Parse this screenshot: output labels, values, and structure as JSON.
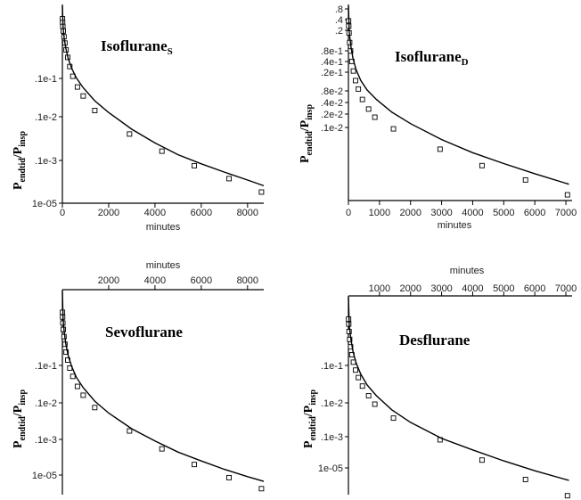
{
  "chart_data": [
    {
      "type": "scatter",
      "title": "Isoflurane",
      "title_subscript": "S",
      "ylabel": "P",
      "ylabel_subscript": "endtid",
      "ylabel_suffix": "/P",
      "ylabel_suffix_subscript": "insp",
      "xlabel": "minutes",
      "x_axis_position": "bottom",
      "xlim": [
        0,
        8700
      ],
      "x_ticks": [
        0,
        2000,
        4000,
        6000,
        8000
      ],
      "y_scale": "log",
      "y_tick_labels": [
        ".1e-1",
        ".1e-2",
        ".1e-3",
        "1e-05"
      ],
      "series": [
        {
          "style": "markers",
          "x": [
            5,
            10,
            20,
            40,
            70,
            110,
            160,
            230,
            320,
            450,
            650,
            900,
            1400,
            2900,
            4300,
            5700,
            7200,
            8600
          ],
          "y": [
            0.55,
            0.47,
            0.4,
            0.33,
            0.26,
            0.2,
            0.15,
            0.11,
            0.075,
            0.05,
            0.032,
            0.022,
            0.012,
            0.0045,
            0.0022,
            0.0012,
            0.0007,
            0.0004
          ]
        },
        {
          "style": "line",
          "x": [
            0,
            30,
            80,
            150,
            250,
            400,
            600,
            900,
            1400,
            2000,
            3000,
            4000,
            5000,
            6000,
            7000,
            8000,
            8700
          ],
          "y": [
            0.95,
            0.38,
            0.24,
            0.16,
            0.105,
            0.07,
            0.047,
            0.031,
            0.018,
            0.011,
            0.0055,
            0.0031,
            0.0019,
            0.0013,
            0.00092,
            0.00066,
            0.00052
          ]
        }
      ]
    },
    {
      "type": "scatter",
      "title": "Isoflurane",
      "title_subscript": "D",
      "ylabel": "P",
      "ylabel_subscript": "endtid",
      "ylabel_suffix": "/P",
      "ylabel_suffix_subscript": "insp",
      "xlabel": "minutes",
      "x_axis_position": "bottom",
      "xlim": [
        0,
        7200
      ],
      "x_ticks": [
        0,
        1000,
        2000,
        3000,
        4000,
        5000,
        6000,
        7000
      ],
      "y_scale": "log",
      "y_tick_labels": [
        ".8",
        ".4",
        ".2",
        ".8e-1",
        ".4e-1",
        ".2e-1",
        ".8e-2",
        ".4e-2",
        ".2e-2",
        ".1e-2"
      ],
      "series": [
        {
          "style": "markers",
          "x": [
            5,
            10,
            20,
            40,
            70,
            110,
            160,
            230,
            320,
            450,
            650,
            850,
            1450,
            2950,
            4300,
            5700,
            7050
          ],
          "y": [
            0.5,
            0.4,
            0.3,
            0.2,
            0.14,
            0.09,
            0.06,
            0.04,
            0.028,
            0.018,
            0.012,
            0.0085,
            0.0052,
            0.0022,
            0.0011,
            0.0006,
            0.00032
          ]
        },
        {
          "style": "line",
          "x": [
            0,
            30,
            80,
            150,
            250,
            400,
            600,
            900,
            1400,
            2000,
            3000,
            4000,
            5000,
            6000,
            7100
          ],
          "y": [
            0.95,
            0.3,
            0.17,
            0.1,
            0.063,
            0.04,
            0.027,
            0.018,
            0.0105,
            0.0065,
            0.0033,
            0.0019,
            0.0012,
            0.00078,
            0.0005
          ]
        }
      ]
    },
    {
      "type": "scatter",
      "title": "Sevoflurane",
      "ylabel": "P",
      "ylabel_subscript": "endtid",
      "ylabel_suffix": "/P",
      "ylabel_suffix_subscript": "insp",
      "xlabel": "minutes",
      "x_axis_position": "top",
      "xlim": [
        0,
        8700
      ],
      "x_ticks": [
        2000,
        4000,
        6000,
        8000
      ],
      "y_scale": "log",
      "y_tick_labels": [
        ".1e-1",
        ".1e-2",
        ".1e-3",
        "1e-05"
      ],
      "series": [
        {
          "style": "markers",
          "x": [
            5,
            10,
            20,
            40,
            70,
            110,
            160,
            230,
            320,
            450,
            650,
            900,
            1400,
            2900,
            4300,
            5700,
            7200,
            8600
          ],
          "y": [
            0.4,
            0.33,
            0.26,
            0.2,
            0.15,
            0.11,
            0.08,
            0.058,
            0.042,
            0.03,
            0.02,
            0.014,
            0.0085,
            0.0033,
            0.0016,
            0.00085,
            0.0005,
            0.00032
          ]
        },
        {
          "style": "line",
          "x": [
            0,
            30,
            80,
            150,
            250,
            400,
            600,
            900,
            1400,
            2000,
            3000,
            4000,
            5000,
            6000,
            7000,
            8000,
            8700
          ],
          "y": [
            0.95,
            0.3,
            0.18,
            0.11,
            0.07,
            0.045,
            0.029,
            0.019,
            0.011,
            0.0068,
            0.0036,
            0.0022,
            0.0014,
            0.00098,
            0.0007,
            0.00052,
            0.00043
          ]
        }
      ]
    },
    {
      "type": "scatter",
      "title": "Desflurane",
      "ylabel": "P",
      "ylabel_subscript": "endtid",
      "ylabel_suffix": "/P",
      "ylabel_suffix_subscript": "insp",
      "xlabel": "minutes",
      "x_axis_position": "top",
      "xlim": [
        0,
        7200
      ],
      "x_ticks": [
        1000,
        2000,
        3000,
        4000,
        5000,
        6000,
        7000
      ],
      "y_scale": "log",
      "y_tick_labels": [
        ".1e-1",
        ".1e-2",
        ".1e-3",
        "1e-05"
      ],
      "series": [
        {
          "style": "markers",
          "x": [
            5,
            10,
            20,
            40,
            70,
            110,
            160,
            230,
            320,
            450,
            650,
            850,
            1450,
            2950,
            4300,
            5700,
            7050
          ],
          "y": [
            0.35,
            0.28,
            0.2,
            0.14,
            0.1,
            0.07,
            0.05,
            0.035,
            0.025,
            0.017,
            0.011,
            0.0075,
            0.004,
            0.0015,
            0.0006,
            0.00025,
            0.00012
          ]
        },
        {
          "style": "line",
          "x": [
            0,
            30,
            80,
            150,
            250,
            400,
            600,
            900,
            1400,
            2000,
            3000,
            4000,
            5000,
            6000,
            7100
          ],
          "y": [
            0.95,
            0.25,
            0.14,
            0.08,
            0.048,
            0.029,
            0.018,
            0.011,
            0.0058,
            0.0033,
            0.0016,
            0.00095,
            0.00058,
            0.00037,
            0.00024
          ]
        }
      ]
    }
  ]
}
